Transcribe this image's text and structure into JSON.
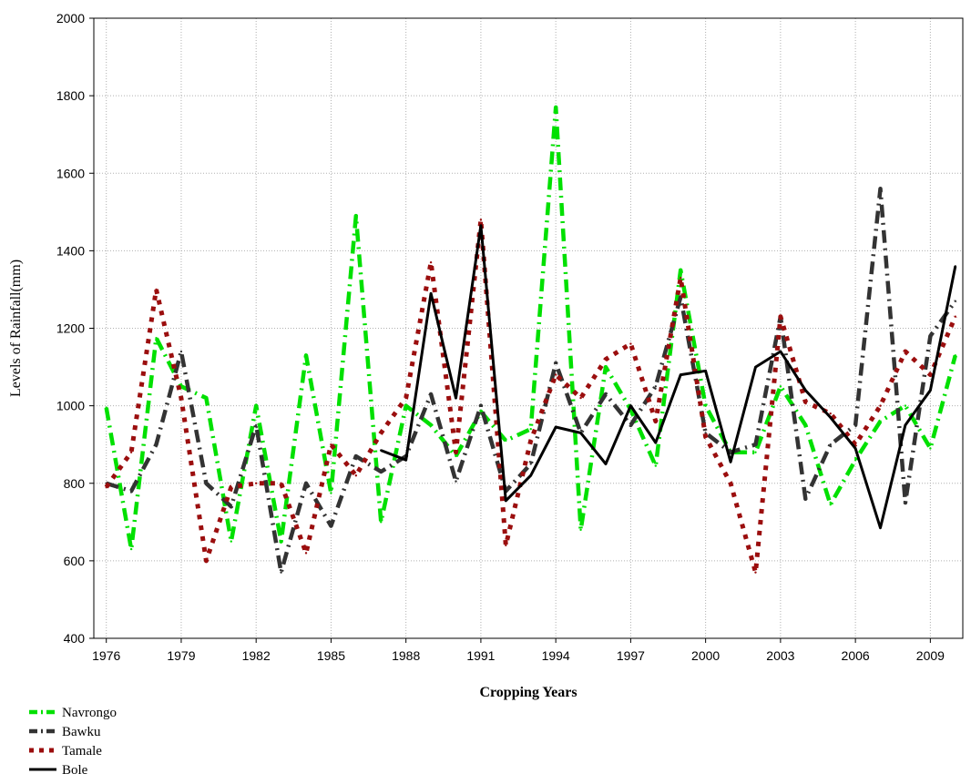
{
  "chart_data": {
    "type": "line",
    "title": "",
    "xlabel": "Cropping Years",
    "ylabel": "Levels of Rainfall(mm)",
    "xlim": [
      1975.5,
      2010.3
    ],
    "ylim": [
      400,
      2000
    ],
    "x_ticks": [
      1976,
      1979,
      1982,
      1985,
      1988,
      1991,
      1994,
      1997,
      2000,
      2003,
      2006,
      2009
    ],
    "y_ticks": [
      400,
      600,
      800,
      1000,
      1200,
      1400,
      1600,
      1800,
      2000
    ],
    "grid": true,
    "legend_position": "bottom-left",
    "series": [
      {
        "name": "Navrongo",
        "color": "#00e000",
        "style": "dash-dot",
        "x": [
          1976,
          1977,
          1978,
          1979,
          1980,
          1981,
          1982,
          1983,
          1984,
          1985,
          1986,
          1987,
          1988,
          1989,
          1990,
          1991,
          1992,
          1993,
          1994,
          1995,
          1996,
          1997,
          1998,
          1999,
          2000,
          2001,
          2002,
          2003,
          2004,
          2005,
          2006,
          2007,
          2008,
          2009,
          2010
        ],
        "values": [
          995,
          630,
          1175,
          1050,
          1020,
          650,
          1000,
          650,
          1130,
          775,
          1490,
          700,
          1000,
          950,
          870,
          985,
          910,
          940,
          1770,
          680,
          1100,
          990,
          845,
          1350,
          1000,
          880,
          880,
          1050,
          950,
          745,
          860,
          960,
          1000,
          890,
          1130
        ]
      },
      {
        "name": "Bawku",
        "color": "#333333",
        "style": "dash-dot",
        "x": [
          1976,
          1977,
          1978,
          1979,
          1980,
          1981,
          1982,
          1983,
          1984,
          1985,
          1986,
          1987,
          1988,
          1989,
          1990,
          1991,
          1992,
          1993,
          1994,
          1995,
          1996,
          1997,
          1998,
          1999,
          2000,
          2001,
          2002,
          2003,
          2004,
          2005,
          2006,
          2007,
          2008,
          2009,
          2010
        ],
        "values": [
          800,
          780,
          900,
          1140,
          800,
          740,
          950,
          570,
          800,
          690,
          870,
          830,
          870,
          1030,
          805,
          1000,
          780,
          850,
          1110,
          930,
          1030,
          950,
          1050,
          1280,
          930,
          880,
          900,
          1230,
          760,
          900,
          950,
          1560,
          750,
          1180,
          1270
        ]
      },
      {
        "name": "Tamale",
        "color": "#9b0e0e",
        "style": "dotted",
        "x": [
          1976,
          1977,
          1978,
          1979,
          1980,
          1981,
          1982,
          1983,
          1984,
          1985,
          1986,
          1987,
          1988,
          1989,
          1990,
          1991,
          1992,
          1993,
          1994,
          1995,
          1996,
          1997,
          1998,
          1999,
          2000,
          2001,
          2002,
          2003,
          2004,
          2005,
          2006,
          2007,
          2008,
          2009,
          2010
        ],
        "values": [
          790,
          880,
          1300,
          1020,
          600,
          790,
          800,
          800,
          620,
          900,
          820,
          930,
          1020,
          1370,
          880,
          1480,
          640,
          910,
          1080,
          1020,
          1120,
          1160,
          960,
          1330,
          920,
          800,
          570,
          1230,
          1010,
          980,
          900,
          1000,
          1140,
          1080,
          1230
        ]
      },
      {
        "name": "Bole",
        "color": "#000000",
        "style": "solid",
        "x": [
          1987,
          1988,
          1989,
          1990,
          1991,
          1992,
          1993,
          1994,
          1995,
          1996,
          1997,
          1998,
          1999,
          2000,
          2001,
          2002,
          2003,
          2004,
          2005,
          2006,
          2007,
          2008,
          2009,
          2010
        ],
        "values": [
          885,
          860,
          1290,
          1020,
          1465,
          755,
          820,
          945,
          930,
          850,
          1000,
          905,
          1080,
          1090,
          855,
          1100,
          1140,
          1040,
          970,
          890,
          685,
          950,
          1040,
          1360
        ]
      }
    ]
  }
}
